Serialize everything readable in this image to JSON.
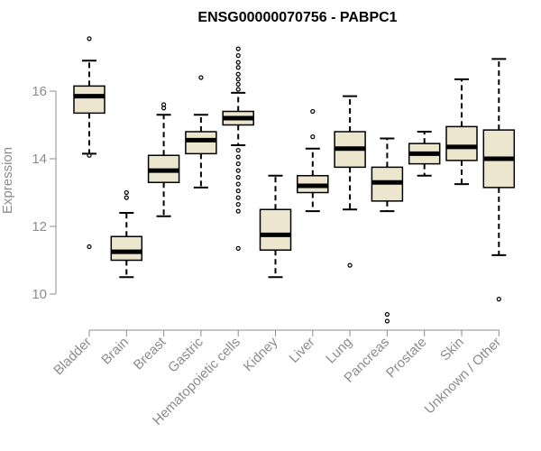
{
  "chart_data": {
    "type": "box",
    "title": "ENSG00000070756 - PABPC1",
    "xlabel": "",
    "ylabel": "Expression",
    "ylim": [
      9.0,
      17.8
    ],
    "yticks": [
      10,
      12,
      14,
      16
    ],
    "grid": false,
    "legend": "none",
    "colors": {
      "box_fill": "#ede6cf",
      "box_stroke": "#000000",
      "axis": "#8c8c8c"
    },
    "categories": [
      "Bladder",
      "Brain",
      "Breast",
      "Gastric",
      "Hematopoietic cells",
      "Kidney",
      "Liver",
      "Lung",
      "Pancreas",
      "Prostate",
      "Skin",
      "Unknown / Other"
    ],
    "boxes": [
      {
        "name": "Bladder",
        "whisker_low": 14.15,
        "q1": 15.35,
        "median": 15.85,
        "q3": 16.15,
        "whisker_high": 16.9,
        "outliers": [
          17.55,
          14.1,
          11.4
        ]
      },
      {
        "name": "Brain",
        "whisker_low": 10.5,
        "q1": 11.0,
        "median": 11.25,
        "q3": 11.7,
        "whisker_high": 12.4,
        "outliers": [
          13.0,
          12.85
        ]
      },
      {
        "name": "Breast",
        "whisker_low": 12.3,
        "q1": 13.3,
        "median": 13.65,
        "q3": 14.1,
        "whisker_high": 15.3,
        "outliers": [
          15.6,
          15.5
        ]
      },
      {
        "name": "Gastric",
        "whisker_low": 13.15,
        "q1": 14.15,
        "median": 14.55,
        "q3": 14.8,
        "whisker_high": 15.3,
        "outliers": [
          16.4
        ]
      },
      {
        "name": "Hematopoietic cells",
        "whisker_low": 14.4,
        "q1": 15.0,
        "median": 15.2,
        "q3": 15.4,
        "whisker_high": 15.95,
        "outliers": [
          17.25,
          17.05,
          16.85,
          16.7,
          16.5,
          16.35,
          16.2,
          16.05,
          14.25,
          14.05,
          13.85,
          13.65,
          13.45,
          13.25,
          13.05,
          12.85,
          12.65,
          12.45,
          11.35
        ]
      },
      {
        "name": "Kidney",
        "whisker_low": 10.5,
        "q1": 11.3,
        "median": 11.75,
        "q3": 12.5,
        "whisker_high": 13.5,
        "outliers": []
      },
      {
        "name": "Liver",
        "whisker_low": 12.45,
        "q1": 13.0,
        "median": 13.2,
        "q3": 13.5,
        "whisker_high": 14.3,
        "outliers": [
          15.4,
          14.65
        ]
      },
      {
        "name": "Lung",
        "whisker_low": 12.5,
        "q1": 13.75,
        "median": 14.3,
        "q3": 14.8,
        "whisker_high": 15.85,
        "outliers": [
          10.85
        ]
      },
      {
        "name": "Pancreas",
        "whisker_low": 12.45,
        "q1": 12.75,
        "median": 13.3,
        "q3": 13.75,
        "whisker_high": 14.6,
        "outliers": [
          9.4,
          9.2
        ]
      },
      {
        "name": "Prostate",
        "whisker_low": 13.5,
        "q1": 13.85,
        "median": 14.15,
        "q3": 14.45,
        "whisker_high": 14.8,
        "outliers": []
      },
      {
        "name": "Skin",
        "whisker_low": 13.25,
        "q1": 13.95,
        "median": 14.35,
        "q3": 14.95,
        "whisker_high": 16.35,
        "outliers": []
      },
      {
        "name": "Unknown / Other",
        "whisker_low": 11.15,
        "q1": 13.15,
        "median": 14.0,
        "q3": 14.85,
        "whisker_high": 16.95,
        "outliers": [
          9.85
        ]
      }
    ]
  }
}
